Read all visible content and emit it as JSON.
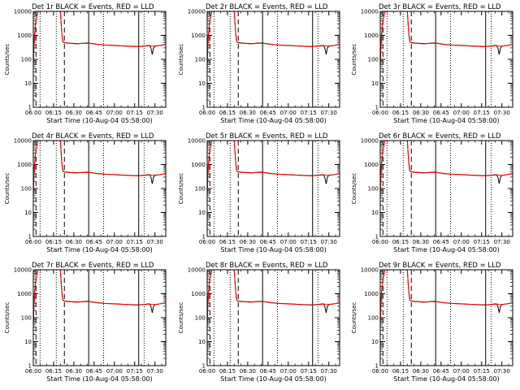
{
  "chart_data": [
    {
      "type": "line",
      "title": "Det 1r BLACK = Events, RED = LLD"
    },
    {
      "type": "line",
      "title": "Det 2r BLACK = Events, RED = LLD"
    },
    {
      "type": "line",
      "title": "Det 3r BLACK = Events, RED = LLD"
    },
    {
      "type": "line",
      "title": "Det 4r BLACK = Events, RED = LLD"
    },
    {
      "type": "line",
      "title": "Det 5r BLACK = Events, RED = LLD"
    },
    {
      "type": "line",
      "title": "Det 6r BLACK = Events, RED = LLD"
    },
    {
      "type": "line",
      "title": "Det 7r BLACK = Events, RED = LLD"
    },
    {
      "type": "line",
      "title": "Det 8r BLACK = Events, RED = LLD"
    },
    {
      "type": "line",
      "title": "Det 9r BLACK = Events, RED = LLD"
    }
  ],
  "shared": {
    "xlabel": "Start Time (10-Aug-04 05:58:00)",
    "ylabel": "Counts/sec",
    "x_ticks": [
      "06:00",
      "06:15",
      "06:30",
      "06:45",
      "07:00",
      "07:15",
      "07:30"
    ],
    "x_tick_minutes": [
      0,
      15,
      30,
      45,
      60,
      75,
      90
    ],
    "xlim_minutes": [
      0,
      98
    ],
    "y_ticks": [
      "1",
      "10",
      "100",
      "1000",
      "10000"
    ],
    "y_tick_values": [
      1,
      10,
      100,
      1000,
      10000
    ],
    "ylim": [
      1,
      10000
    ],
    "yscale": "log",
    "vlines": {
      "dotted": [
        5,
        17,
        52,
        82
      ],
      "dashed": [
        2,
        23
      ],
      "solid": [
        41,
        78
      ]
    },
    "series": [
      {
        "name": "Events",
        "color": "#000000",
        "x": [
          0,
          0.5,
          1,
          1.5,
          2,
          2.5,
          3,
          3.5,
          4,
          17,
          20,
          21,
          21.5,
          22,
          23,
          25,
          28,
          30,
          33,
          36,
          40,
          42,
          45,
          48,
          52,
          56,
          60,
          64,
          68,
          72,
          76,
          80,
          84,
          86,
          87,
          88,
          89,
          90,
          94,
          98
        ],
        "y": [
          50,
          400,
          1200,
          2500,
          4000,
          5500,
          7500,
          10000,
          10000,
          10000,
          10000,
          1500,
          700,
          520,
          500,
          480,
          470,
          460,
          450,
          470,
          480,
          470,
          440,
          420,
          400,
          390,
          380,
          370,
          360,
          350,
          340,
          350,
          370,
          380,
          300,
          160,
          300,
          350,
          380,
          420
        ]
      },
      {
        "name": "LLD",
        "color": "#ff0000",
        "x": [
          0,
          0.5,
          1,
          1.5,
          2,
          2.5,
          3,
          3.5,
          4,
          17,
          20,
          21,
          22,
          23,
          25,
          28,
          30,
          33,
          36,
          40,
          42,
          45,
          48,
          52,
          56,
          60,
          64,
          68,
          72,
          76,
          80,
          84,
          86,
          88,
          90,
          94,
          98
        ],
        "y": [
          50,
          380,
          1150,
          2400,
          3900,
          5400,
          7400,
          10000,
          10000,
          10000,
          10000,
          1400,
          540,
          490,
          470,
          460,
          450,
          440,
          460,
          470,
          460,
          430,
          410,
          395,
          385,
          375,
          365,
          355,
          345,
          335,
          345,
          360,
          370,
          360,
          355,
          380,
          420
        ]
      }
    ]
  }
}
